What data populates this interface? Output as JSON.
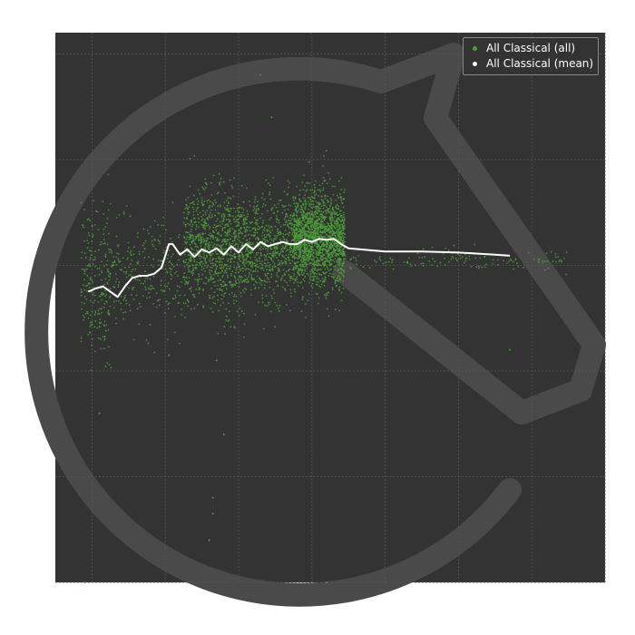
{
  "chart_data": {
    "type": "scatter",
    "title": "",
    "xlabel": "",
    "ylabel": "",
    "grid": true,
    "legend_position": "top-right",
    "xlim": [
      0,
      7.5
    ],
    "ylim": [
      -3,
      2.2
    ],
    "series": [
      {
        "name": "All Classical (all)",
        "style": "scatter",
        "color": "#4c9e3a",
        "clusters": [
          {
            "x_range": [
              0.35,
              0.75
            ],
            "y_center": -0.15,
            "y_spread": 0.35,
            "count": 220
          },
          {
            "x_range": [
              0.75,
              1.75
            ],
            "y_center": -0.1,
            "y_spread": 0.25,
            "count": 260
          },
          {
            "x_range": [
              1.75,
              2.55
            ],
            "y_center": 0.15,
            "y_spread": 0.28,
            "count": 900
          },
          {
            "x_range": [
              2.55,
              3.25
            ],
            "y_center": 0.15,
            "y_spread": 0.25,
            "count": 700
          },
          {
            "x_range": [
              3.25,
              3.95
            ],
            "y_center": 0.25,
            "y_spread": 0.22,
            "count": 1800
          },
          {
            "x_range": [
              3.95,
              7.0
            ],
            "y_center": 0.05,
            "y_spread": 0.06,
            "count": 140
          }
        ],
        "outliers": [
          {
            "x": 2.8,
            "y": 1.8
          },
          {
            "x": 2.3,
            "y": -1.6
          },
          {
            "x": 2.1,
            "y": -2.6
          },
          {
            "x": 2.15,
            "y": -2.2
          },
          {
            "x": 2.15,
            "y": -2.35
          },
          {
            "x": 0.6,
            "y": -1.4
          },
          {
            "x": 0.4,
            "y": -3.0
          },
          {
            "x": 3.7,
            "y": -3.0
          },
          {
            "x": 6.2,
            "y": -0.8
          },
          {
            "x": 2.2,
            "y": -0.9
          },
          {
            "x": 2.95,
            "y": 1.4
          },
          {
            "x": 1.55,
            "y": -0.85
          }
        ]
      },
      {
        "name": "All Classical (mean)",
        "style": "line",
        "color": "#ffffff",
        "x": [
          0.45,
          0.55,
          0.65,
          0.75,
          0.85,
          0.95,
          1.05,
          1.15,
          1.25,
          1.35,
          1.45,
          1.55,
          1.6,
          1.7,
          1.8,
          1.9,
          2.0,
          2.1,
          2.2,
          2.3,
          2.4,
          2.5,
          2.6,
          2.7,
          2.8,
          2.9,
          3.0,
          3.1,
          3.2,
          3.3,
          3.4,
          3.5,
          3.6,
          3.7,
          3.8,
          3.9,
          4.0,
          4.5,
          5.0,
          5.5,
          6.0,
          6.2
        ],
        "y": [
          -0.25,
          -0.22,
          -0.2,
          -0.25,
          -0.3,
          -0.2,
          -0.12,
          -0.1,
          -0.1,
          -0.08,
          -0.02,
          0.2,
          0.2,
          0.1,
          0.15,
          0.08,
          0.15,
          0.12,
          0.16,
          0.1,
          0.18,
          0.12,
          0.2,
          0.15,
          0.22,
          0.18,
          0.2,
          0.22,
          0.2,
          0.2,
          0.24,
          0.22,
          0.25,
          0.24,
          0.25,
          0.2,
          0.16,
          0.13,
          0.13,
          0.12,
          0.1,
          0.09
        ]
      }
    ]
  }
}
